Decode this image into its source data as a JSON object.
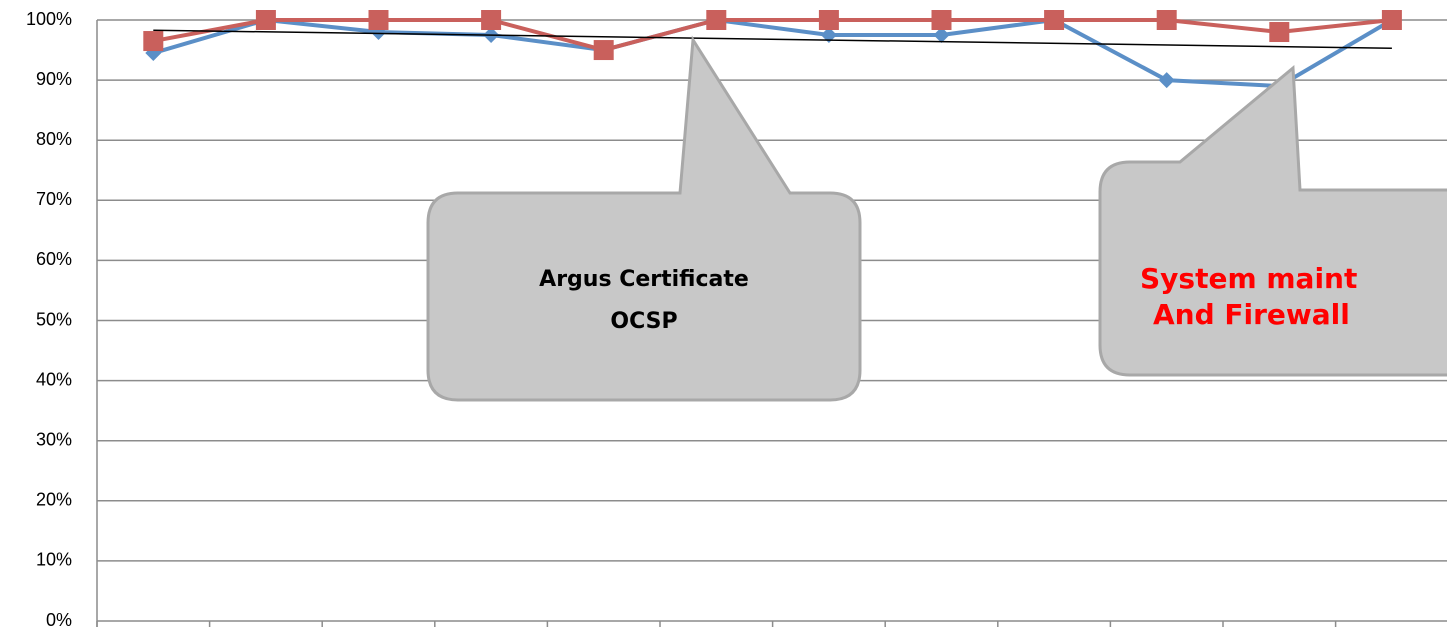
{
  "chart_data": {
    "type": "line",
    "categories": [
      null,
      null,
      null,
      null,
      null,
      null,
      null,
      null,
      null,
      null,
      null,
      null
    ],
    "series": [
      {
        "color": "#5b8fc7",
        "marker": "diamond",
        "values": [
          94.5,
          100,
          98,
          97.5,
          95,
          100,
          97.5,
          97.5,
          100,
          90,
          89,
          100
        ]
      },
      {
        "color": "#c9605c",
        "marker": "square",
        "values": [
          96.5,
          100,
          100,
          100,
          95,
          100,
          100,
          100,
          100,
          100,
          98,
          100
        ]
      }
    ],
    "trendline": {
      "color": "#000000",
      "start": 98.3,
      "end": 95.3
    },
    "ylim": [
      0,
      100
    ],
    "yticks": [
      {
        "value": 0,
        "label": "0%"
      },
      {
        "value": 10,
        "label": "10%"
      },
      {
        "value": 20,
        "label": "20%"
      },
      {
        "value": 30,
        "label": "30%"
      },
      {
        "value": 40,
        "label": "40%"
      },
      {
        "value": 50,
        "label": "50%"
      },
      {
        "value": 60,
        "label": "60%"
      },
      {
        "value": 70,
        "label": "70%"
      },
      {
        "value": 80,
        "label": "80%"
      },
      {
        "value": 90,
        "label": "90%"
      },
      {
        "value": 100,
        "label": "100%"
      }
    ],
    "grid": true,
    "annotations": [
      {
        "lines": [
          "Argus Certificate",
          "OCSP"
        ],
        "color": "#000000"
      },
      {
        "lines": [
          "System maint",
          "And Firewall"
        ],
        "color": "#ff0000"
      }
    ]
  }
}
